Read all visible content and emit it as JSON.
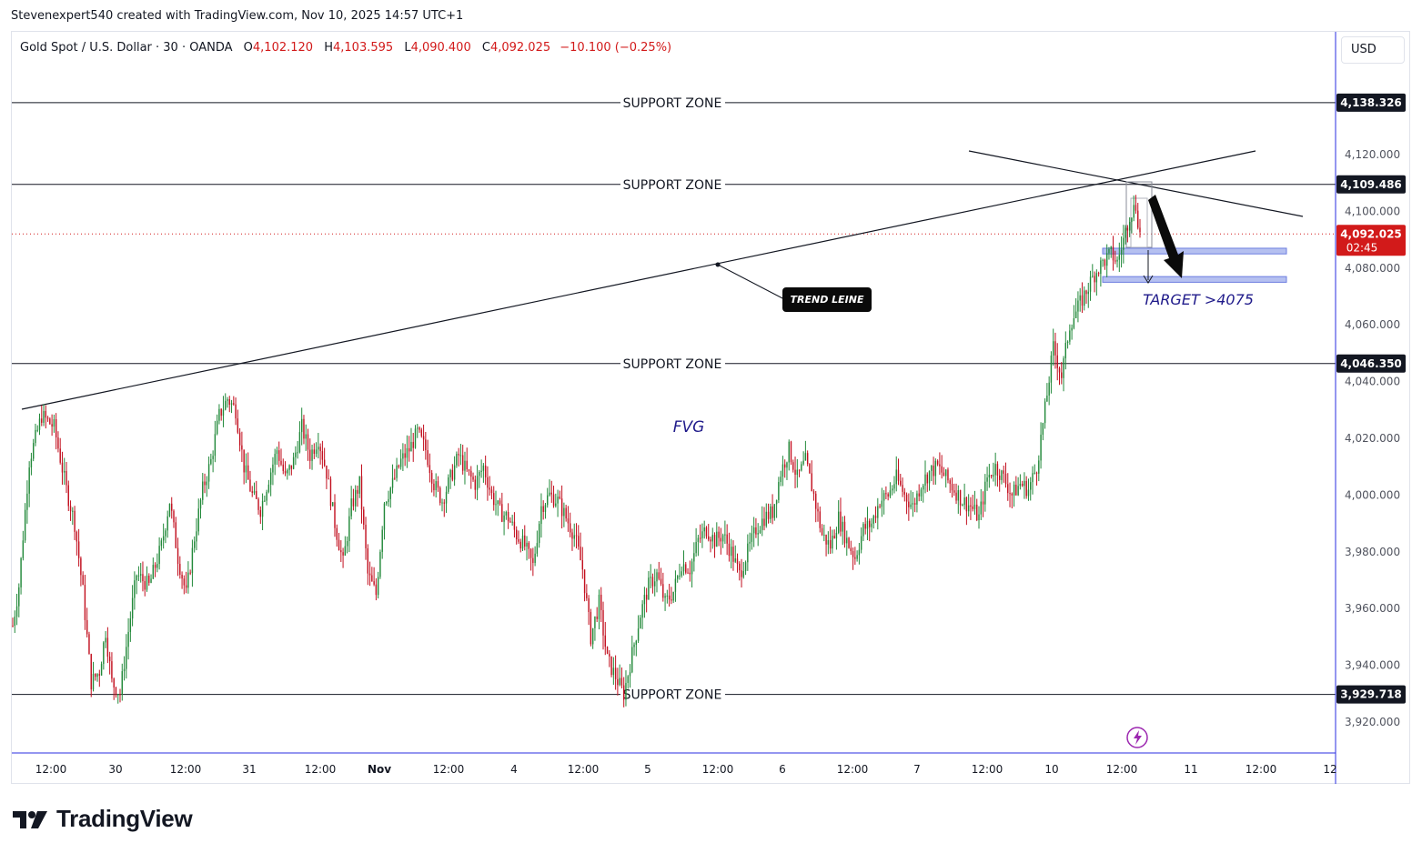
{
  "header": {
    "credit": "Stevenexpert540 created with TradingView.com, Nov 10, 2025 14:57 UTC+1"
  },
  "legend": {
    "symbol": "Gold Spot / U.S. Dollar · 30 · OANDA",
    "open_label": "O",
    "open": "4,102.120",
    "high_label": "H",
    "high": "4,103.595",
    "low_label": "L",
    "low": "4,090.400",
    "close_label": "C",
    "close": "4,092.025",
    "change": "−10.100 (−0.25%)"
  },
  "currency_button": "USD",
  "brand": {
    "name": "TradingView"
  },
  "colors": {
    "up": "#22893a",
    "down": "#c2101f",
    "price_tag": "#d21a1a",
    "zone_fill": "#b5c0f0",
    "zone_stroke": "#6d7ee0",
    "target_text": "#1f1a8a",
    "axis_line": "#2a2ee0"
  },
  "chart_data": {
    "type": "candlestick",
    "instrument": "Gold Spot / U.S. Dollar",
    "timeframe": "30",
    "ylim": [
      3910,
      4152
    ],
    "y_ticks": [
      "4,120.000",
      "4,100.000",
      "4,080.000",
      "4,060.000",
      "4,040.000",
      "4,020.000",
      "4,000.000",
      "3,980.000",
      "3,960.000",
      "3,940.000",
      "3,920.000"
    ],
    "x_ticks": [
      "12:00",
      "30",
      "12:00",
      "31",
      "12:00",
      "Nov",
      "12:00",
      "4",
      "12:00",
      "5",
      "12:00",
      "6",
      "12:00",
      "7",
      "12:00",
      "10",
      "12:00",
      "11",
      "12:00",
      "12"
    ],
    "current_price": {
      "price": 4092.025,
      "label": "4,092.025",
      "countdown": "02:45"
    },
    "levels": [
      {
        "price": 4138.326,
        "label": "4,138.326",
        "text": "SUPPORT ZONE"
      },
      {
        "price": 4109.486,
        "label": "4,109.486",
        "text": "SUPPORT ZONE"
      },
      {
        "price": 4046.35,
        "label": "4,046.350",
        "text": "SUPPORT ZONE"
      },
      {
        "price": 3929.718,
        "label": "3,929.718",
        "text": "SUPPORT ZONE"
      }
    ],
    "annotations": {
      "trend_label": "TREND LEINE",
      "fvg_label": "FVG",
      "target_label": "TARGET >4075"
    },
    "zones": [
      {
        "top": 4087,
        "bottom": 4085
      },
      {
        "top": 4077,
        "bottom": 4075
      }
    ],
    "path_keypoints": [
      [
        0,
        3954
      ],
      [
        3,
        3968
      ],
      [
        8,
        4012
      ],
      [
        14,
        4028
      ],
      [
        20,
        4024
      ],
      [
        26,
        4002
      ],
      [
        30,
        3990
      ],
      [
        34,
        3966
      ],
      [
        38,
        3934
      ],
      [
        42,
        3938
      ],
      [
        45,
        3952
      ],
      [
        48,
        3934
      ],
      [
        52,
        3930
      ],
      [
        56,
        3952
      ],
      [
        60,
        3972
      ],
      [
        66,
        3968
      ],
      [
        72,
        3982
      ],
      [
        76,
        3998
      ],
      [
        80,
        3978
      ],
      [
        84,
        3965
      ],
      [
        88,
        3985
      ],
      [
        92,
        4002
      ],
      [
        96,
        4012
      ],
      [
        100,
        4028
      ],
      [
        104,
        4034
      ],
      [
        108,
        4030
      ],
      [
        112,
        4010
      ],
      [
        116,
        4000
      ],
      [
        120,
        3995
      ],
      [
        124,
        4006
      ],
      [
        128,
        4016
      ],
      [
        132,
        4006
      ],
      [
        136,
        4012
      ],
      [
        140,
        4024
      ],
      [
        144,
        4014
      ],
      [
        148,
        4020
      ],
      [
        152,
        4008
      ],
      [
        156,
        3990
      ],
      [
        160,
        3976
      ],
      [
        164,
        3996
      ],
      [
        168,
        4004
      ],
      [
        172,
        3972
      ],
      [
        176,
        3965
      ],
      [
        180,
        3998
      ],
      [
        184,
        4004
      ],
      [
        188,
        4012
      ],
      [
        192,
        4016
      ],
      [
        196,
        4022
      ],
      [
        200,
        4016
      ],
      [
        204,
        4004
      ],
      [
        208,
        3998
      ],
      [
        212,
        4006
      ],
      [
        216,
        4014
      ],
      [
        220,
        4008
      ],
      [
        224,
        4004
      ],
      [
        228,
        4010
      ],
      [
        232,
        4000
      ],
      [
        236,
        3994
      ],
      [
        240,
        3992
      ],
      [
        244,
        3986
      ],
      [
        248,
        3982
      ],
      [
        252,
        3975
      ],
      [
        256,
        3996
      ],
      [
        260,
        4000
      ],
      [
        264,
        3998
      ],
      [
        268,
        3992
      ],
      [
        272,
        3986
      ],
      [
        276,
        3974
      ],
      [
        280,
        3950
      ],
      [
        284,
        3962
      ],
      [
        288,
        3942
      ],
      [
        292,
        3936
      ],
      [
        296,
        3930
      ],
      [
        300,
        3944
      ],
      [
        304,
        3958
      ],
      [
        308,
        3968
      ],
      [
        312,
        3972
      ],
      [
        316,
        3962
      ],
      [
        320,
        3966
      ],
      [
        324,
        3976
      ],
      [
        328,
        3974
      ],
      [
        332,
        3984
      ],
      [
        336,
        3988
      ],
      [
        340,
        3984
      ],
      [
        344,
        3986
      ],
      [
        348,
        3980
      ],
      [
        352,
        3972
      ],
      [
        356,
        3980
      ],
      [
        360,
        3988
      ],
      [
        364,
        3992
      ],
      [
        368,
        3994
      ],
      [
        372,
        4008
      ],
      [
        376,
        4016
      ],
      [
        380,
        4006
      ],
      [
        384,
        4012
      ],
      [
        388,
        4000
      ],
      [
        392,
        3986
      ],
      [
        396,
        3982
      ],
      [
        400,
        3992
      ],
      [
        404,
        3984
      ],
      [
        408,
        3978
      ],
      [
        412,
        3988
      ],
      [
        416,
        3990
      ],
      [
        420,
        3998
      ],
      [
        424,
        4000
      ],
      [
        428,
        4006
      ],
      [
        432,
        4000
      ],
      [
        436,
        3996
      ],
      [
        440,
        4004
      ],
      [
        444,
        4008
      ],
      [
        448,
        4010
      ],
      [
        452,
        4006
      ],
      [
        456,
        4002
      ],
      [
        460,
        3998
      ],
      [
        464,
        3996
      ],
      [
        468,
        3992
      ],
      [
        472,
        4006
      ],
      [
        476,
        4010
      ],
      [
        480,
        4006
      ],
      [
        484,
        4000
      ],
      [
        488,
        4004
      ],
      [
        492,
        4002
      ],
      [
        496,
        4010
      ],
      [
        500,
        4030
      ],
      [
        504,
        4052
      ],
      [
        508,
        4042
      ],
      [
        512,
        4060
      ],
      [
        516,
        4066
      ],
      [
        520,
        4072
      ],
      [
        524,
        4078
      ],
      [
        528,
        4082
      ],
      [
        532,
        4085
      ],
      [
        535,
        4082
      ],
      [
        538,
        4090
      ],
      [
        541,
        4099
      ],
      [
        544,
        4102
      ],
      [
        546,
        4092
      ]
    ],
    "total_candles": 547
  }
}
